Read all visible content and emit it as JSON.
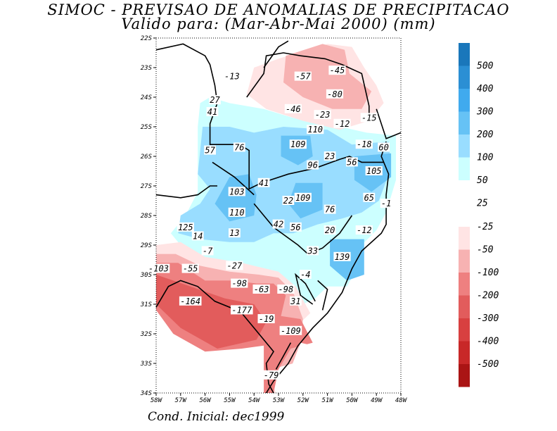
{
  "title": "SIMOC - PREVISAO DE ANOMALIAS DE PRECIPITACAO",
  "subtitle": "Valido para: (Mar-Abr-Mai 2000) (mm)",
  "footer": "Cond. Inicial: dec1999",
  "lat_labels": [
    "22S",
    "23S",
    "24S",
    "25S",
    "26S",
    "27S",
    "28S",
    "29S",
    "30S",
    "31S",
    "32S",
    "33S",
    "34S"
  ],
  "lon_labels": [
    "58W",
    "57W",
    "56W",
    "55W",
    "54W",
    "53W",
    "52W",
    "51W",
    "50W",
    "49W",
    "48W"
  ],
  "colors": {
    "pos": [
      "#ccffff",
      "#99ddff",
      "#66c2f5",
      "#40aaee",
      "#2b8fd4",
      "#1a77bb"
    ],
    "neg": [
      "#ffe4e4",
      "#f7b2b2",
      "#ee8080",
      "#e25c5c",
      "#d84040",
      "#c82828",
      "#aa1414"
    ]
  },
  "legend_pos": [
    {
      "label": "500",
      "color": "#1a77bb"
    },
    {
      "label": "400",
      "color": "#2b8fd4"
    },
    {
      "label": "300",
      "color": "#40aaee"
    },
    {
      "label": "200",
      "color": "#66c2f5"
    },
    {
      "label": "100",
      "color": "#99ddff"
    },
    {
      "label": "50",
      "color": "#ccffff"
    },
    {
      "label": "25",
      "color": null
    }
  ],
  "legend_neg": [
    {
      "label": "-25",
      "color": "#ffe4e4"
    },
    {
      "label": "-50",
      "color": "#f7b2b2"
    },
    {
      "label": "-100",
      "color": "#ee8080"
    },
    {
      "label": "-200",
      "color": "#e25c5c"
    },
    {
      "label": "-300",
      "color": "#d84040"
    },
    {
      "label": "-400",
      "color": "#c82828"
    },
    {
      "label": "-500",
      "color": "#aa1414"
    }
  ],
  "values": [
    {
      "lon": -54.9,
      "lat": -23.3,
      "v": "-13"
    },
    {
      "lon": -52.0,
      "lat": -23.3,
      "v": "-57"
    },
    {
      "lon": -50.6,
      "lat": -23.1,
      "v": "-45"
    },
    {
      "lon": -50.7,
      "lat": -23.9,
      "v": "-80"
    },
    {
      "lon": -55.6,
      "lat": -24.1,
      "v": "27"
    },
    {
      "lon": -55.7,
      "lat": -24.5,
      "v": "41"
    },
    {
      "lon": -52.4,
      "lat": -24.4,
      "v": "-46"
    },
    {
      "lon": -51.2,
      "lat": -24.6,
      "v": "-23"
    },
    {
      "lon": -50.4,
      "lat": -24.9,
      "v": "-12"
    },
    {
      "lon": -49.3,
      "lat": -24.7,
      "v": "-15"
    },
    {
      "lon": -51.5,
      "lat": -25.1,
      "v": "110"
    },
    {
      "lon": -55.8,
      "lat": -25.8,
      "v": "57"
    },
    {
      "lon": -54.6,
      "lat": -25.7,
      "v": "76"
    },
    {
      "lon": -52.2,
      "lat": -25.6,
      "v": "109"
    },
    {
      "lon": -49.5,
      "lat": -25.6,
      "v": "-18"
    },
    {
      "lon": -48.7,
      "lat": -25.7,
      "v": "60"
    },
    {
      "lon": -50.9,
      "lat": -26.0,
      "v": "23"
    },
    {
      "lon": -51.6,
      "lat": -26.3,
      "v": "96"
    },
    {
      "lon": -50.0,
      "lat": -26.2,
      "v": "56"
    },
    {
      "lon": -49.1,
      "lat": -26.5,
      "v": "105"
    },
    {
      "lon": -53.6,
      "lat": -26.9,
      "v": "41"
    },
    {
      "lon": -54.7,
      "lat": -27.2,
      "v": "103"
    },
    {
      "lon": -52.6,
      "lat": -27.5,
      "v": "22"
    },
    {
      "lon": -52.0,
      "lat": -27.4,
      "v": "109"
    },
    {
      "lon": -49.3,
      "lat": -27.4,
      "v": "65"
    },
    {
      "lon": -48.6,
      "lat": -27.6,
      "v": "-1"
    },
    {
      "lon": -54.7,
      "lat": -27.9,
      "v": "110"
    },
    {
      "lon": -50.9,
      "lat": -27.8,
      "v": "76"
    },
    {
      "lon": -53.0,
      "lat": -28.3,
      "v": "42"
    },
    {
      "lon": -52.3,
      "lat": -28.4,
      "v": "56"
    },
    {
      "lon": -50.9,
      "lat": -28.5,
      "v": "20"
    },
    {
      "lon": -49.5,
      "lat": -28.5,
      "v": "-12"
    },
    {
      "lon": -56.8,
      "lat": -28.4,
      "v": "125"
    },
    {
      "lon": -54.8,
      "lat": -28.6,
      "v": "13"
    },
    {
      "lon": -56.3,
      "lat": -28.7,
      "v": "14"
    },
    {
      "lon": -55.9,
      "lat": -29.2,
      "v": "-7"
    },
    {
      "lon": -51.6,
      "lat": -29.2,
      "v": "33"
    },
    {
      "lon": -50.4,
      "lat": -29.4,
      "v": "139"
    },
    {
      "lon": -57.9,
      "lat": -29.8,
      "v": "-103"
    },
    {
      "lon": -56.6,
      "lat": -29.8,
      "v": "-55"
    },
    {
      "lon": -54.8,
      "lat": -29.7,
      "v": "-27"
    },
    {
      "lon": -51.9,
      "lat": -30.0,
      "v": "-4"
    },
    {
      "lon": -54.6,
      "lat": -30.3,
      "v": "-98"
    },
    {
      "lon": -53.7,
      "lat": -30.5,
      "v": "-63"
    },
    {
      "lon": -52.7,
      "lat": -30.5,
      "v": "-98"
    },
    {
      "lon": -52.3,
      "lat": -30.9,
      "v": "31"
    },
    {
      "lon": -56.6,
      "lat": -30.9,
      "v": "-164"
    },
    {
      "lon": -54.5,
      "lat": -31.2,
      "v": "-177"
    },
    {
      "lon": -53.5,
      "lat": -31.5,
      "v": "-19"
    },
    {
      "lon": -52.5,
      "lat": -31.9,
      "v": "-109"
    },
    {
      "lon": -53.3,
      "lat": -33.4,
      "v": "-79"
    }
  ]
}
